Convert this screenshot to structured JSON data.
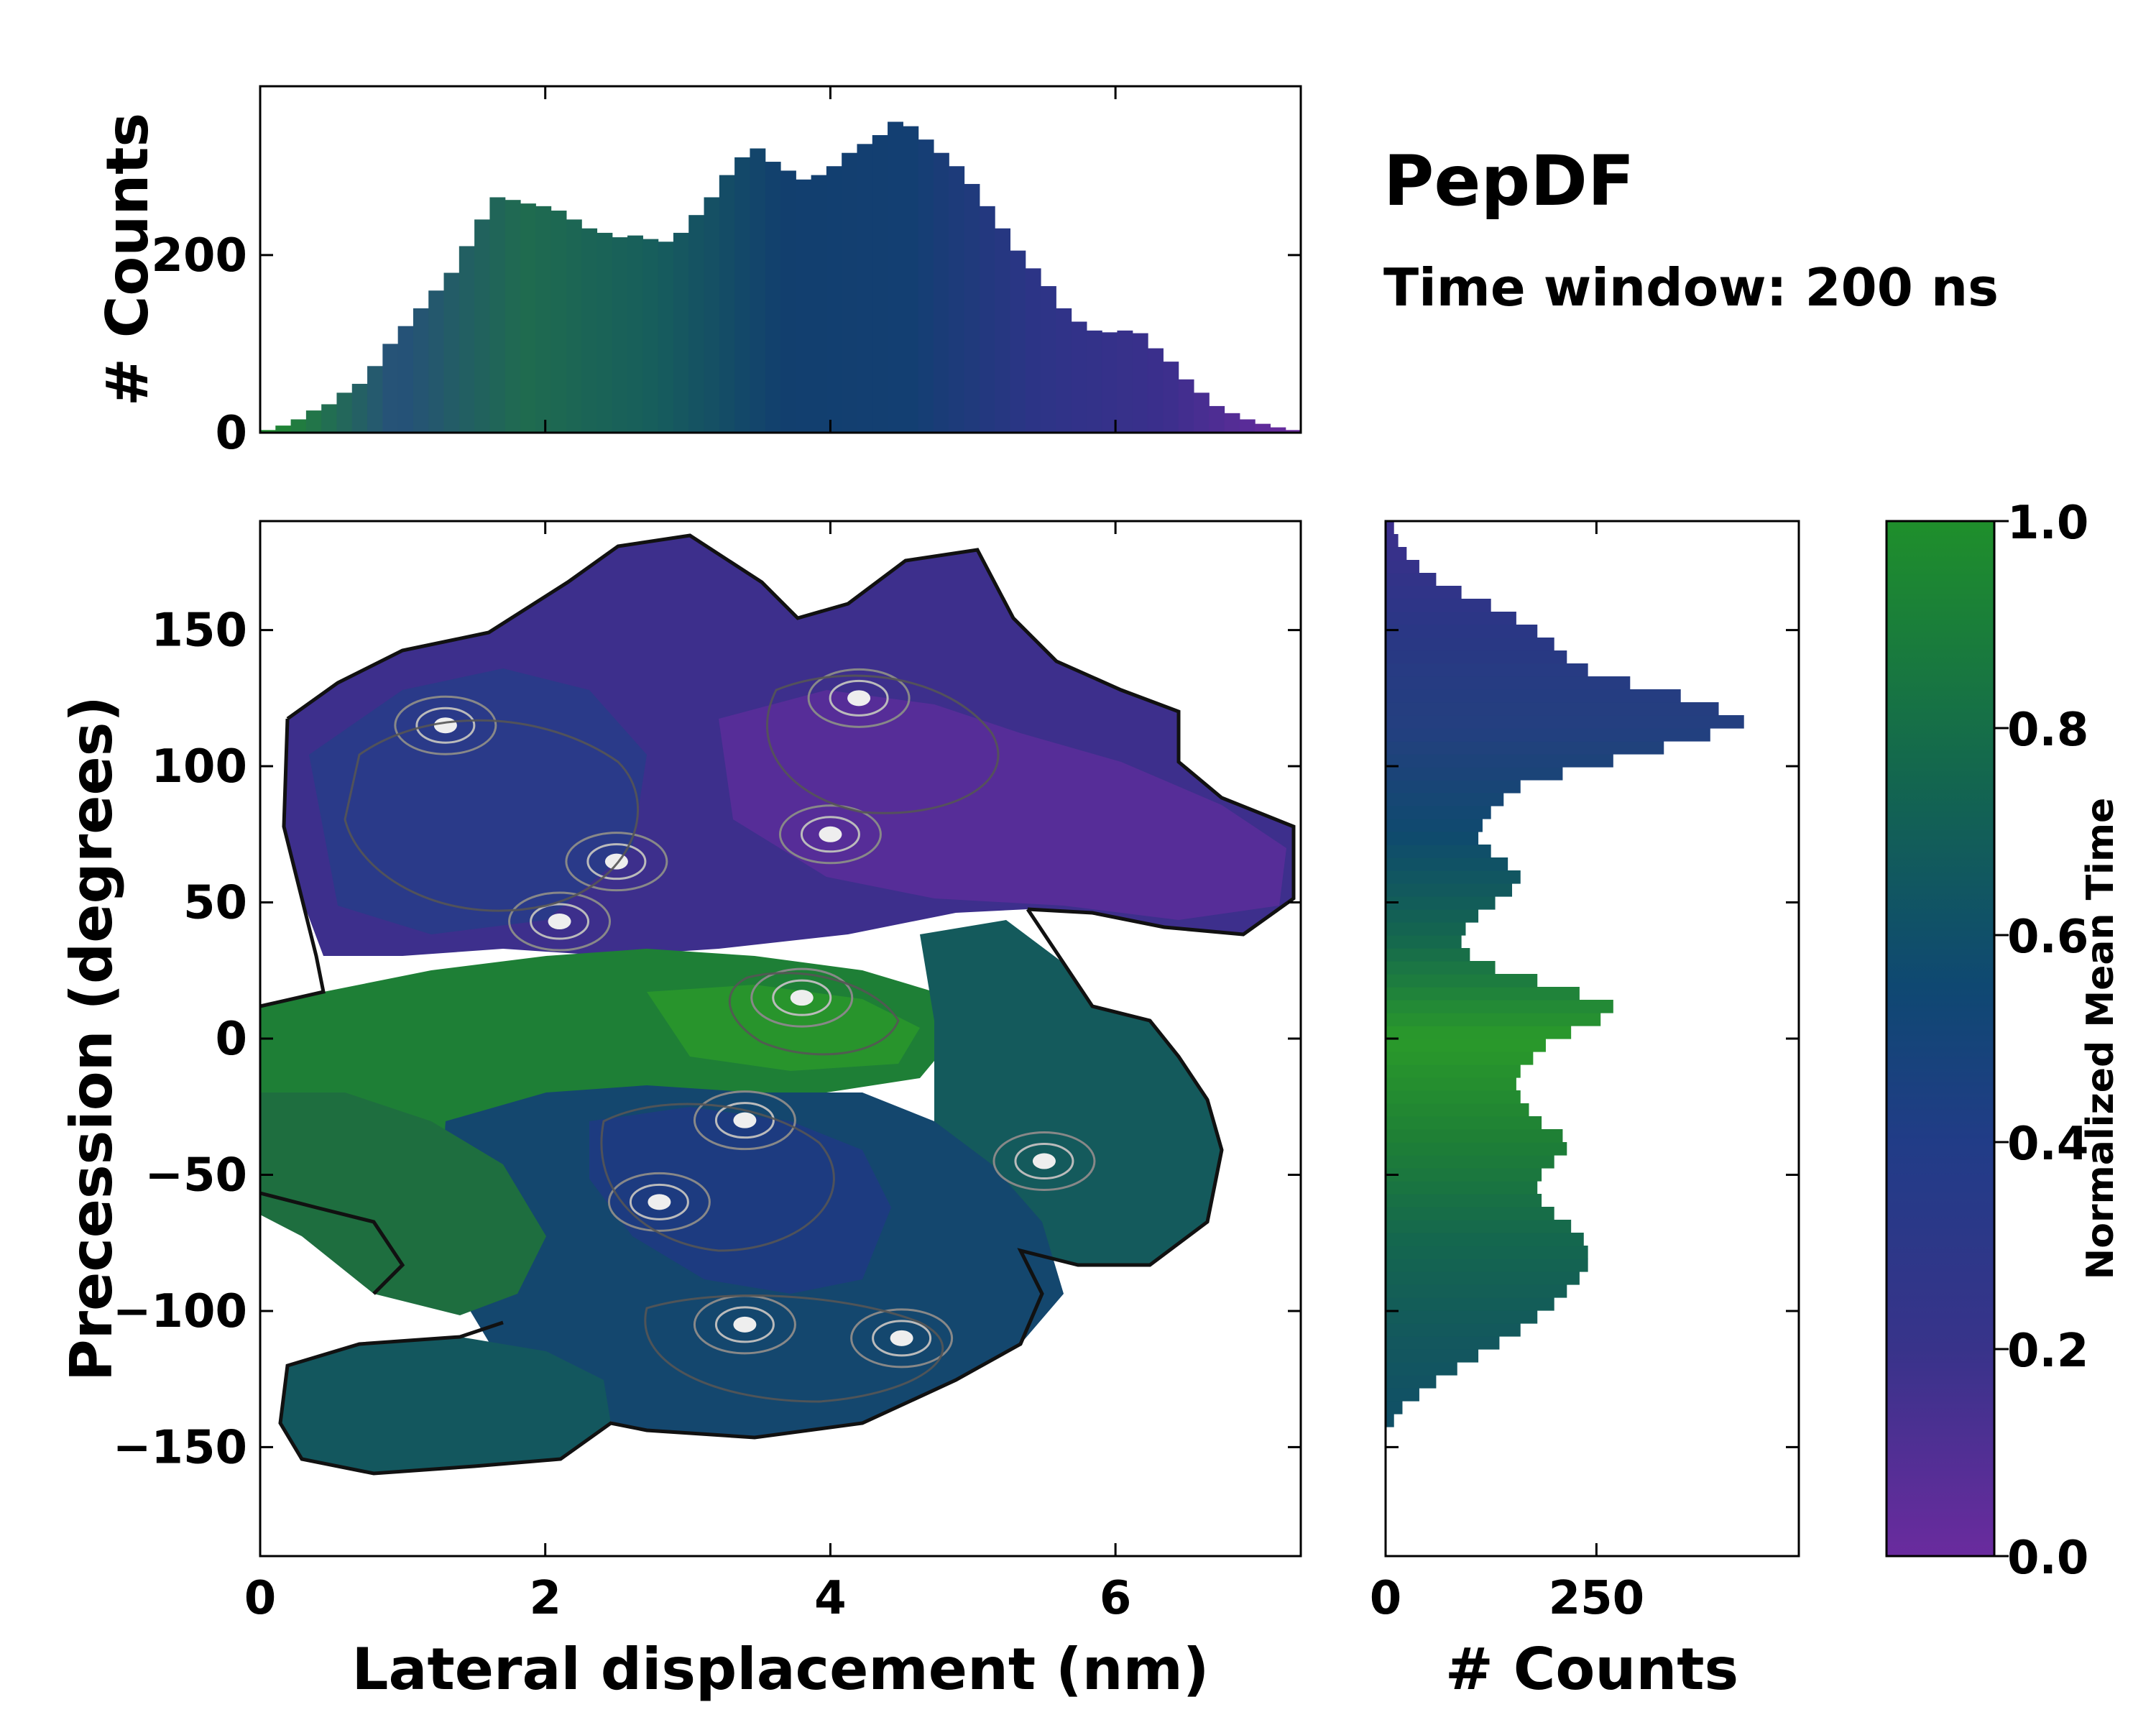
{
  "chart_data": {
    "type": "heatmap",
    "title": "PepDF",
    "subtitle": "Time window: 200 ns",
    "joint": {
      "xlabel": "Lateral displacement (nm)",
      "ylabel": "Precession (degrees)",
      "xlim": [
        0,
        7.3
      ],
      "ylim": [
        -190,
        190
      ],
      "xticks": [
        0,
        2,
        4,
        6
      ],
      "xtick_labels": [
        "0",
        "2",
        "4",
        "6"
      ],
      "yticks": [
        150,
        100,
        50,
        0,
        -50,
        -100,
        -150
      ],
      "ytick_labels": [
        "150",
        "100",
        "50",
        "0",
        "−50",
        "−100",
        "−150"
      ],
      "regions": [
        {
          "name": "upper-purple-lobe",
          "x": [
            0.2,
            7.2
          ],
          "y": [
            30,
            180
          ],
          "mean_time": 0.18
        },
        {
          "name": "central-green-band",
          "x": [
            0,
            4.5
          ],
          "y": [
            -60,
            50
          ],
          "mean_time": 0.85
        },
        {
          "name": "right-teal-lobe",
          "x": [
            4.5,
            6.8
          ],
          "y": [
            -80,
            40
          ],
          "mean_time": 0.62
        },
        {
          "name": "lower-blue-lobe",
          "x": [
            1.5,
            6.0
          ],
          "y": [
            -160,
            -40
          ],
          "mean_time": 0.45
        },
        {
          "name": "lower-left-teal-lobe",
          "x": [
            0.2,
            2.5
          ],
          "y": [
            -160,
            -110
          ],
          "mean_time": 0.6
        }
      ],
      "density_peaks": [
        {
          "x": 1.3,
          "y": 115
        },
        {
          "x": 2.1,
          "y": 43
        },
        {
          "x": 2.5,
          "y": 65
        },
        {
          "x": 4.2,
          "y": 125
        },
        {
          "x": 4.0,
          "y": 75
        },
        {
          "x": 2.8,
          "y": -60
        },
        {
          "x": 3.4,
          "y": -30
        },
        {
          "x": 3.4,
          "y": -105
        },
        {
          "x": 4.5,
          "y": -110
        },
        {
          "x": 3.8,
          "y": 15
        },
        {
          "x": 5.5,
          "y": -45
        }
      ]
    },
    "top_histogram": {
      "ylabel": "# Counts",
      "yticks": [
        0,
        200
      ],
      "ytick_labels": [
        "0",
        "200"
      ],
      "ylim": [
        0,
        390
      ],
      "bin_range": [
        0,
        7.3
      ],
      "values": [
        3,
        8,
        15,
        25,
        32,
        45,
        55,
        75,
        100,
        120,
        140,
        160,
        180,
        210,
        240,
        265,
        262,
        258,
        255,
        250,
        240,
        230,
        225,
        220,
        222,
        218,
        215,
        225,
        245,
        265,
        290,
        310,
        320,
        305,
        295,
        285,
        290,
        300,
        315,
        325,
        335,
        350,
        345,
        330,
        315,
        300,
        280,
        255,
        230,
        205,
        185,
        165,
        140,
        125,
        115,
        113,
        115,
        112,
        95,
        80,
        60,
        45,
        30,
        22,
        15,
        10,
        6,
        3
      ]
    },
    "right_histogram": {
      "xlabel": "# Counts",
      "xticks": [
        0,
        250
      ],
      "xtick_labels": [
        "0",
        "250"
      ],
      "xlim": [
        0,
        490
      ],
      "bin_range": [
        -190,
        190
      ],
      "values": [
        0,
        0,
        0,
        0,
        0,
        0,
        0,
        0,
        0,
        0,
        10,
        20,
        40,
        60,
        85,
        110,
        135,
        160,
        180,
        200,
        215,
        230,
        240,
        240,
        235,
        220,
        200,
        185,
        180,
        185,
        200,
        215,
        210,
        185,
        170,
        160,
        155,
        160,
        175,
        190,
        220,
        255,
        270,
        230,
        180,
        130,
        100,
        90,
        95,
        110,
        130,
        150,
        160,
        145,
        125,
        110,
        115,
        125,
        140,
        160,
        210,
        270,
        330,
        385,
        425,
        395,
        350,
        290,
        240,
        215,
        200,
        180,
        155,
        125,
        90,
        60,
        40,
        25,
        15,
        10
      ]
    },
    "colorbar": {
      "label": "Normalized Mean Time",
      "ticks": [
        0.0,
        0.2,
        0.4,
        0.6,
        0.8,
        1.0
      ],
      "tick_labels": [
        "0.0",
        "0.2",
        "0.4",
        "0.6",
        "0.8",
        "1.0"
      ],
      "colors": [
        "#6a2b9e",
        "#38338a",
        "#213c87",
        "#0f4872",
        "#13664f",
        "#1f8f2b"
      ]
    }
  }
}
